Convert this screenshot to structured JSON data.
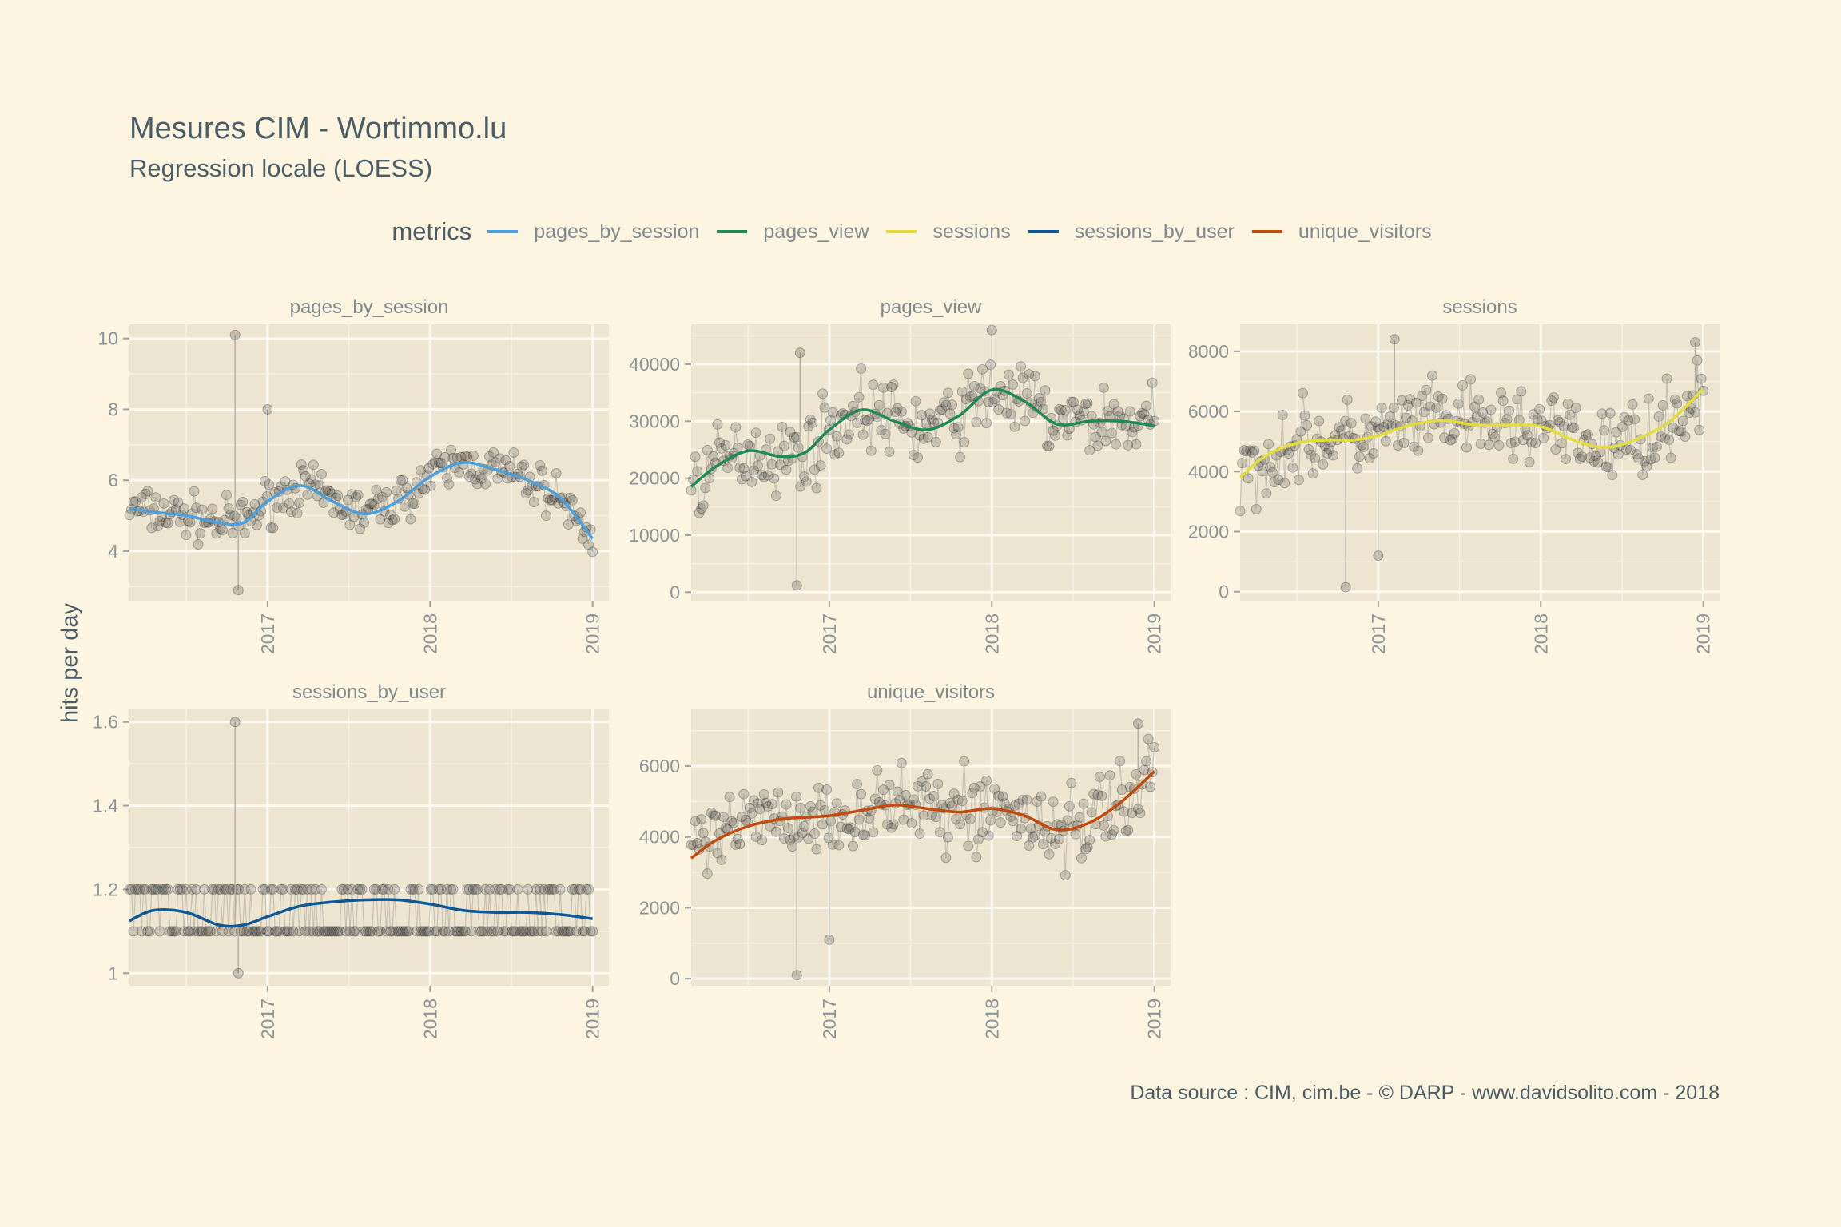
{
  "title": "Mesures CIM - Wortimmo.lu",
  "subtitle": "Regression locale (LOESS)",
  "ylabel": "hits per day",
  "caption": "Data source : CIM, cim.be - © DARP - www.davidsolito.com - 2018",
  "legend": {
    "title": "metrics",
    "placement": "top",
    "items": [
      {
        "label": "pages_by_session",
        "color": "#4a9fdc"
      },
      {
        "label": "pages_view",
        "color": "#1f8a54"
      },
      {
        "label": "sessions",
        "color": "#e3dc3a"
      },
      {
        "label": "sessions_by_user",
        "color": "#0e5796"
      },
      {
        "label": "unique_visitors",
        "color": "#c44a0b"
      }
    ]
  },
  "chart_data": [
    {
      "type": "line",
      "panel": "pages_by_session",
      "color": "#4a9fdc",
      "xlim": [
        2016.15,
        2019.1
      ],
      "ylim": [
        2.6,
        10.4
      ],
      "x_ticks": [
        "2017",
        "2018",
        "2019"
      ],
      "y_ticks": [
        4,
        6,
        8,
        10
      ],
      "smooth": {
        "x": [
          2016.15,
          2016.3,
          2016.5,
          2016.7,
          2016.85,
          2017.0,
          2017.2,
          2017.4,
          2017.6,
          2017.8,
          2018.0,
          2018.2,
          2018.4,
          2018.6,
          2018.8,
          2019.0
        ],
        "y": [
          5.2,
          5.1,
          5.0,
          4.8,
          4.8,
          5.4,
          5.85,
          5.4,
          5.05,
          5.4,
          6.1,
          6.5,
          6.3,
          6.0,
          5.5,
          4.35
        ]
      },
      "points": {
        "level": [
          5.2,
          5.1,
          5.0,
          4.8,
          4.8,
          5.4,
          5.85,
          5.4,
          5.05,
          5.4,
          6.1,
          6.5,
          6.3,
          6.0,
          5.5,
          4.35
        ],
        "spread": 0.55,
        "outliers": [
          [
            2016.8,
            10.1
          ],
          [
            2016.82,
            2.9
          ],
          [
            2017.0,
            8.0
          ]
        ]
      }
    },
    {
      "type": "line",
      "panel": "pages_view",
      "color": "#1f8a54",
      "xlim": [
        2016.15,
        2019.1
      ],
      "ylim": [
        -1500,
        47000
      ],
      "x_ticks": [
        "2017",
        "2018",
        "2019"
      ],
      "y_ticks": [
        0,
        10000,
        20000,
        30000,
        40000
      ],
      "smooth": {
        "x": [
          2016.15,
          2016.3,
          2016.5,
          2016.7,
          2016.85,
          2017.0,
          2017.2,
          2017.4,
          2017.6,
          2017.8,
          2018.0,
          2018.2,
          2018.4,
          2018.6,
          2018.8,
          2019.0
        ],
        "y": [
          18500,
          22000,
          24800,
          23800,
          24500,
          28500,
          32000,
          30000,
          28500,
          31000,
          35500,
          33500,
          29500,
          30000,
          30000,
          29200
        ]
      },
      "points": {
        "level": [
          18500,
          22000,
          24800,
          23800,
          24500,
          28500,
          32000,
          30000,
          28500,
          31000,
          35500,
          33500,
          29500,
          30000,
          30000,
          29200
        ],
        "spread": 5500,
        "outliers": [
          [
            2016.8,
            1200
          ],
          [
            2016.82,
            42000
          ],
          [
            2018.0,
            46000
          ]
        ]
      }
    },
    {
      "type": "line",
      "panel": "sessions",
      "color": "#e3dc3a",
      "xlim": [
        2016.15,
        2019.1
      ],
      "ylim": [
        -300,
        8900
      ],
      "x_ticks": [
        "2017",
        "2018",
        "2019"
      ],
      "y_ticks": [
        0,
        2000,
        4000,
        6000,
        8000
      ],
      "smooth": {
        "x": [
          2016.15,
          2016.3,
          2016.5,
          2016.7,
          2016.85,
          2017.0,
          2017.2,
          2017.4,
          2017.6,
          2017.8,
          2018.0,
          2018.2,
          2018.4,
          2018.6,
          2018.8,
          2019.0
        ],
        "y": [
          3800,
          4500,
          4950,
          5050,
          5050,
          5200,
          5550,
          5700,
          5550,
          5550,
          5500,
          5050,
          4800,
          5100,
          5700,
          6750
        ]
      },
      "points": {
        "level": [
          3800,
          4500,
          4950,
          5050,
          5050,
          5200,
          5550,
          5700,
          5550,
          5550,
          5500,
          5050,
          4800,
          5100,
          5700,
          6750
        ],
        "spread": 1100,
        "outliers": [
          [
            2016.8,
            150
          ],
          [
            2017.0,
            1200
          ],
          [
            2017.1,
            8400
          ],
          [
            2018.95,
            8300
          ]
        ]
      }
    },
    {
      "type": "line",
      "panel": "sessions_by_user",
      "color": "#0e5796",
      "xlim": [
        2016.15,
        2019.1
      ],
      "ylim": [
        0.97,
        1.63
      ],
      "x_ticks": [
        "2017",
        "2018",
        "2019"
      ],
      "y_ticks": [
        1.0,
        1.2,
        1.4,
        1.6
      ],
      "smooth": {
        "x": [
          2016.15,
          2016.3,
          2016.5,
          2016.7,
          2016.85,
          2017.0,
          2017.2,
          2017.4,
          2017.6,
          2017.8,
          2018.0,
          2018.2,
          2018.4,
          2018.6,
          2018.8,
          2019.0
        ],
        "y": [
          1.125,
          1.15,
          1.145,
          1.115,
          1.115,
          1.135,
          1.16,
          1.17,
          1.175,
          1.175,
          1.165,
          1.15,
          1.145,
          1.145,
          1.14,
          1.13
        ]
      },
      "points": {
        "discrete": [
          1.1,
          1.2
        ],
        "outliers": [
          [
            2016.8,
            1.6
          ],
          [
            2016.82,
            1.0
          ]
        ]
      }
    },
    {
      "type": "line",
      "panel": "unique_visitors",
      "color": "#c44a0b",
      "xlim": [
        2016.15,
        2019.1
      ],
      "ylim": [
        -200,
        7600
      ],
      "x_ticks": [
        "2017",
        "2018",
        "2019"
      ],
      "y_ticks": [
        0,
        2000,
        4000,
        6000
      ],
      "smooth": {
        "x": [
          2016.15,
          2016.3,
          2016.5,
          2016.7,
          2016.85,
          2017.0,
          2017.2,
          2017.4,
          2017.6,
          2017.8,
          2018.0,
          2018.2,
          2018.4,
          2018.6,
          2018.8,
          2019.0
        ],
        "y": [
          3400,
          3900,
          4300,
          4500,
          4550,
          4600,
          4750,
          4900,
          4800,
          4700,
          4800,
          4600,
          4200,
          4400,
          5000,
          5850
        ]
      },
      "points": {
        "level": [
          3400,
          3900,
          4300,
          4500,
          4550,
          4600,
          4750,
          4900,
          4800,
          4700,
          4800,
          4600,
          4200,
          4400,
          5000,
          5850
        ],
        "spread": 900,
        "outliers": [
          [
            2016.8,
            100
          ],
          [
            2017.0,
            1100
          ],
          [
            2018.9,
            7200
          ]
        ]
      }
    }
  ]
}
